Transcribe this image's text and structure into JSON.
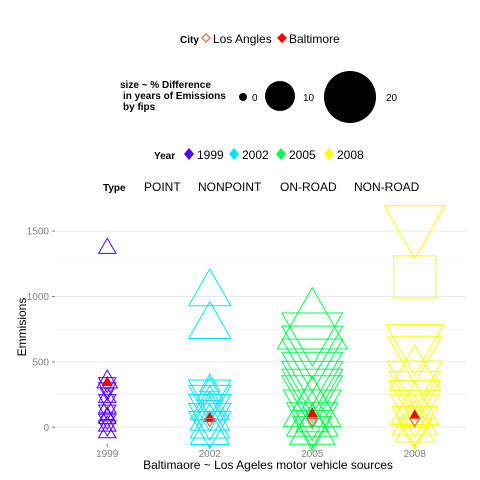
{
  "chart_data": {
    "type": "scatter",
    "title": "",
    "xlabel": "Baltimaore ~ Los Ageles motor vehicle sources",
    "ylabel": "Emmisions",
    "x_categories": [
      "1999",
      "2002",
      "2005",
      "2008"
    ],
    "ylim": [
      -120,
      1700
    ],
    "y_ticks": [
      0,
      500,
      1000,
      1500
    ],
    "grid": true,
    "legends": {
      "city": {
        "title": "City",
        "entries": [
          {
            "label": "Los Angles",
            "color": "#e06040",
            "marker": "diamond-open"
          },
          {
            "label": "Baltimore",
            "color": "#ff0000",
            "marker": "diamond"
          }
        ]
      },
      "size": {
        "title_lines": [
          "size ~ % Difference",
          "in years of Emissions",
          "by fips"
        ],
        "entries": [
          {
            "label": "0",
            "value": 0
          },
          {
            "label": "10",
            "value": 10
          },
          {
            "label": "20",
            "value": 20
          }
        ]
      },
      "year": {
        "title": "Year",
        "entries": [
          {
            "label": "1999",
            "color": "#5200ff"
          },
          {
            "label": "2002",
            "color": "#00e5ff"
          },
          {
            "label": "2005",
            "color": "#00ff4d"
          },
          {
            "label": "2008",
            "color": "#ffff00"
          }
        ]
      },
      "type": {
        "title": "Type",
        "entries": [
          "POINT",
          "NONPOINT",
          "ON-ROAD",
          "NON-ROAD"
        ]
      }
    },
    "series": [
      {
        "year": "1999",
        "color": "#5200ff",
        "points": [
          {
            "y": 1380,
            "size": 3,
            "dir": "up"
          },
          {
            "y": 360,
            "size": 4,
            "dir": "up"
          },
          {
            "y": 330,
            "size": 3,
            "dir": "down"
          },
          {
            "y": 290,
            "size": 3,
            "dir": "down"
          },
          {
            "y": 240,
            "size": 3,
            "dir": "up"
          },
          {
            "y": 200,
            "size": 3,
            "dir": "down"
          },
          {
            "y": 160,
            "size": 3,
            "dir": "up"
          },
          {
            "y": 120,
            "size": 3,
            "dir": "down"
          },
          {
            "y": 80,
            "size": 3,
            "dir": "up"
          },
          {
            "y": 50,
            "size": 3,
            "dir": "down"
          },
          {
            "y": 20,
            "size": 3,
            "dir": "up"
          },
          {
            "y": 0,
            "size": 3,
            "dir": "down"
          },
          {
            "y": -30,
            "size": 3,
            "dir": "up"
          },
          {
            "y": 100,
            "size": 2,
            "dir": "up"
          },
          {
            "y": 260,
            "size": 2,
            "dir": "down"
          }
        ]
      },
      {
        "year": "2002",
        "color": "#00e5ff",
        "points": [
          {
            "y": 1050,
            "size": 11,
            "dir": "up"
          },
          {
            "y": 800,
            "size": 11,
            "dir": "up"
          },
          {
            "y": 240,
            "size": 11,
            "dir": "down"
          },
          {
            "y": 200,
            "size": 11,
            "dir": "down"
          },
          {
            "y": 170,
            "size": 10,
            "dir": "up"
          },
          {
            "y": 130,
            "size": 11,
            "dir": "down"
          },
          {
            "y": 90,
            "size": 10,
            "dir": "up"
          },
          {
            "y": 60,
            "size": 11,
            "dir": "down"
          },
          {
            "y": 30,
            "size": 10,
            "dir": "up"
          },
          {
            "y": 0,
            "size": 11,
            "dir": "down"
          },
          {
            "y": -20,
            "size": 10,
            "dir": "up"
          },
          {
            "y": 280,
            "size": 6,
            "dir": "up"
          },
          {
            "y": 330,
            "size": 4,
            "dir": "up"
          },
          {
            "y": 150,
            "size": 8,
            "dir": "up"
          }
        ]
      },
      {
        "year": "2005",
        "color": "#00ff4d",
        "points": [
          {
            "y": 800,
            "size": 20,
            "dir": "up"
          },
          {
            "y": 700,
            "size": 17,
            "dir": "down"
          },
          {
            "y": 600,
            "size": 17,
            "dir": "down"
          },
          {
            "y": 500,
            "size": 17,
            "dir": "down"
          },
          {
            "y": 400,
            "size": 17,
            "dir": "down"
          },
          {
            "y": 330,
            "size": 17,
            "dir": "down"
          },
          {
            "y": 270,
            "size": 17,
            "dir": "down"
          },
          {
            "y": 220,
            "size": 17,
            "dir": "down"
          },
          {
            "y": 170,
            "size": 16,
            "dir": "up"
          },
          {
            "y": 120,
            "size": 16,
            "dir": "down"
          },
          {
            "y": 80,
            "size": 14,
            "dir": "up"
          },
          {
            "y": 40,
            "size": 14,
            "dir": "down"
          },
          {
            "y": 0,
            "size": 12,
            "dir": "up"
          },
          {
            "y": -30,
            "size": 10,
            "dir": "down"
          },
          {
            "y": 240,
            "size": 10,
            "dir": "up"
          },
          {
            "y": 60,
            "size": 8,
            "dir": "up"
          }
        ]
      },
      {
        "year": "2008",
        "color": "#ffff00",
        "points": [
          {
            "y": 1520,
            "size": 17,
            "dir": "down"
          },
          {
            "y": 1150,
            "size": 11,
            "dir": "square"
          },
          {
            "y": 620,
            "size": 16,
            "dir": "down"
          },
          {
            "y": 540,
            "size": 15,
            "dir": "down"
          },
          {
            "y": 430,
            "size": 14,
            "dir": "up"
          },
          {
            "y": 350,
            "size": 15,
            "dir": "down"
          },
          {
            "y": 280,
            "size": 14,
            "dir": "down"
          },
          {
            "y": 210,
            "size": 14,
            "dir": "down"
          },
          {
            "y": 160,
            "size": 13,
            "dir": "up"
          },
          {
            "y": 110,
            "size": 13,
            "dir": "down"
          },
          {
            "y": 70,
            "size": 12,
            "dir": "up"
          },
          {
            "y": 30,
            "size": 12,
            "dir": "down"
          },
          {
            "y": 0,
            "size": 10,
            "dir": "up"
          },
          {
            "y": -30,
            "size": 9,
            "dir": "down"
          },
          {
            "y": 90,
            "size": 7,
            "dir": "up"
          }
        ]
      }
    ],
    "city_markers": [
      {
        "x": "1999",
        "city": "Baltimore",
        "y": 350
      },
      {
        "x": "2002",
        "city": "Baltimore",
        "y": 75
      },
      {
        "x": "2002",
        "city": "Los Angles",
        "y": 45
      },
      {
        "x": "2005",
        "city": "Baltimore",
        "y": 110
      },
      {
        "x": "2005",
        "city": "Los Angles",
        "y": 45
      },
      {
        "x": "2008",
        "city": "Baltimore",
        "y": 95
      },
      {
        "x": "2008",
        "city": "Los Angles",
        "y": 45
      }
    ]
  }
}
